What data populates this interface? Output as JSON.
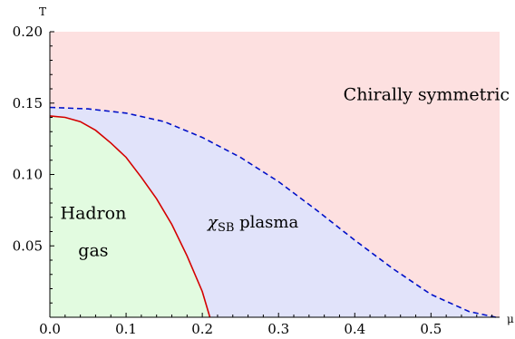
{
  "chart_data": {
    "type": "area",
    "xlabel": "μ",
    "ylabel": "T",
    "xlim": [
      0,
      0.59
    ],
    "ylim": [
      0,
      0.2
    ],
    "xticks": [
      "0.0",
      "0.1",
      "0.2",
      "0.3",
      "0.4",
      "0.5"
    ],
    "yticks": [
      "0.05",
      "0.10",
      "0.15",
      "0.20"
    ],
    "grid": false,
    "regions": [
      {
        "name": "Chirally symmetric plasma",
        "color": "#fde0e0"
      },
      {
        "name": "χSB plasma",
        "color": "#e1e3fa"
      },
      {
        "name": "Hadron gas",
        "color": "#e2fbe0"
      }
    ],
    "series": [
      {
        "style": "solid",
        "color": "#d40000",
        "x": [
          0,
          0.02,
          0.04,
          0.06,
          0.08,
          0.1,
          0.12,
          0.14,
          0.16,
          0.18,
          0.2,
          0.21
        ],
        "y": [
          0.141,
          0.14,
          0.137,
          0.131,
          0.122,
          0.112,
          0.098,
          0.083,
          0.065,
          0.043,
          0.018,
          0.0
        ]
      },
      {
        "style": "dashed",
        "color": "#0010c8",
        "x": [
          0,
          0.05,
          0.1,
          0.15,
          0.2,
          0.25,
          0.3,
          0.35,
          0.4,
          0.45,
          0.5,
          0.55,
          0.585
        ],
        "y": [
          0.147,
          0.146,
          0.143,
          0.137,
          0.126,
          0.112,
          0.095,
          0.075,
          0.054,
          0.034,
          0.016,
          0.004,
          0.0
        ]
      }
    ],
    "annotations": [
      {
        "text": "Chirally symmetric plasma",
        "x": 0.385,
        "y": 0.152
      },
      {
        "text": "Hadron",
        "x": 0.057,
        "y": 0.069
      },
      {
        "text": "gas",
        "x": 0.057,
        "y": 0.043
      },
      {
        "text": "χ",
        "sub": "SB",
        "rest": " plasma",
        "x": 0.207,
        "y": 0.063
      }
    ]
  }
}
